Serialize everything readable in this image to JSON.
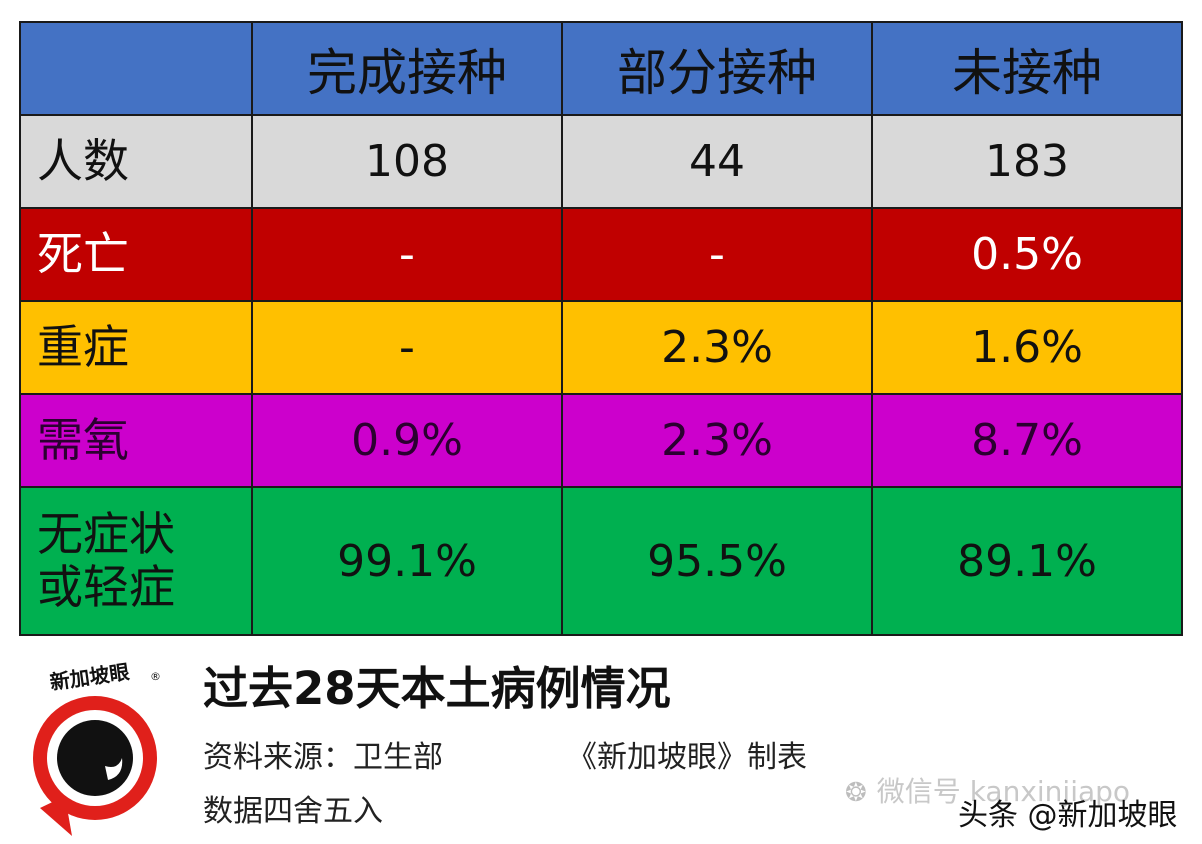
{
  "table": {
    "header": {
      "corner": "",
      "columns": [
        "完成接种",
        "部分接种",
        "未接种"
      ],
      "bg": "#4472c4"
    },
    "rows": [
      {
        "label": "人数",
        "values": [
          "108",
          "44",
          "183"
        ],
        "bg": "#d9d9d9",
        "color": "#111111"
      },
      {
        "label": "死亡",
        "values": [
          "-",
          "-",
          "0.5%"
        ],
        "bg": "#c00000",
        "color": "#ffffff"
      },
      {
        "label": "重症",
        "values": [
          "-",
          "2.3%",
          "1.6%"
        ],
        "bg": "#ffc000",
        "color": "#111111"
      },
      {
        "label": "需氧",
        "values": [
          "0.9%",
          "2.3%",
          "8.7%"
        ],
        "bg": "#cc00cc",
        "color": "#2b0030"
      },
      {
        "label": "无症状\n或轻症",
        "values": [
          "99.1%",
          "95.5%",
          "89.1%"
        ],
        "bg": "#00b050",
        "color": "#111111"
      }
    ]
  },
  "footer": {
    "title": "过去28天本土病例情况",
    "source": "资料来源：卫生部",
    "credit": "《新加坡眼》制表",
    "rounding_note": "数据四舍五入",
    "logo_text": "新加坡眼",
    "logo_registered": "®",
    "wechat_watermark": "微信号 kanxinjiapo",
    "toutiao_watermark": "头条 @新加坡眼"
  },
  "logo_colors": {
    "ring": "#e0201b",
    "eye": "#111111"
  }
}
